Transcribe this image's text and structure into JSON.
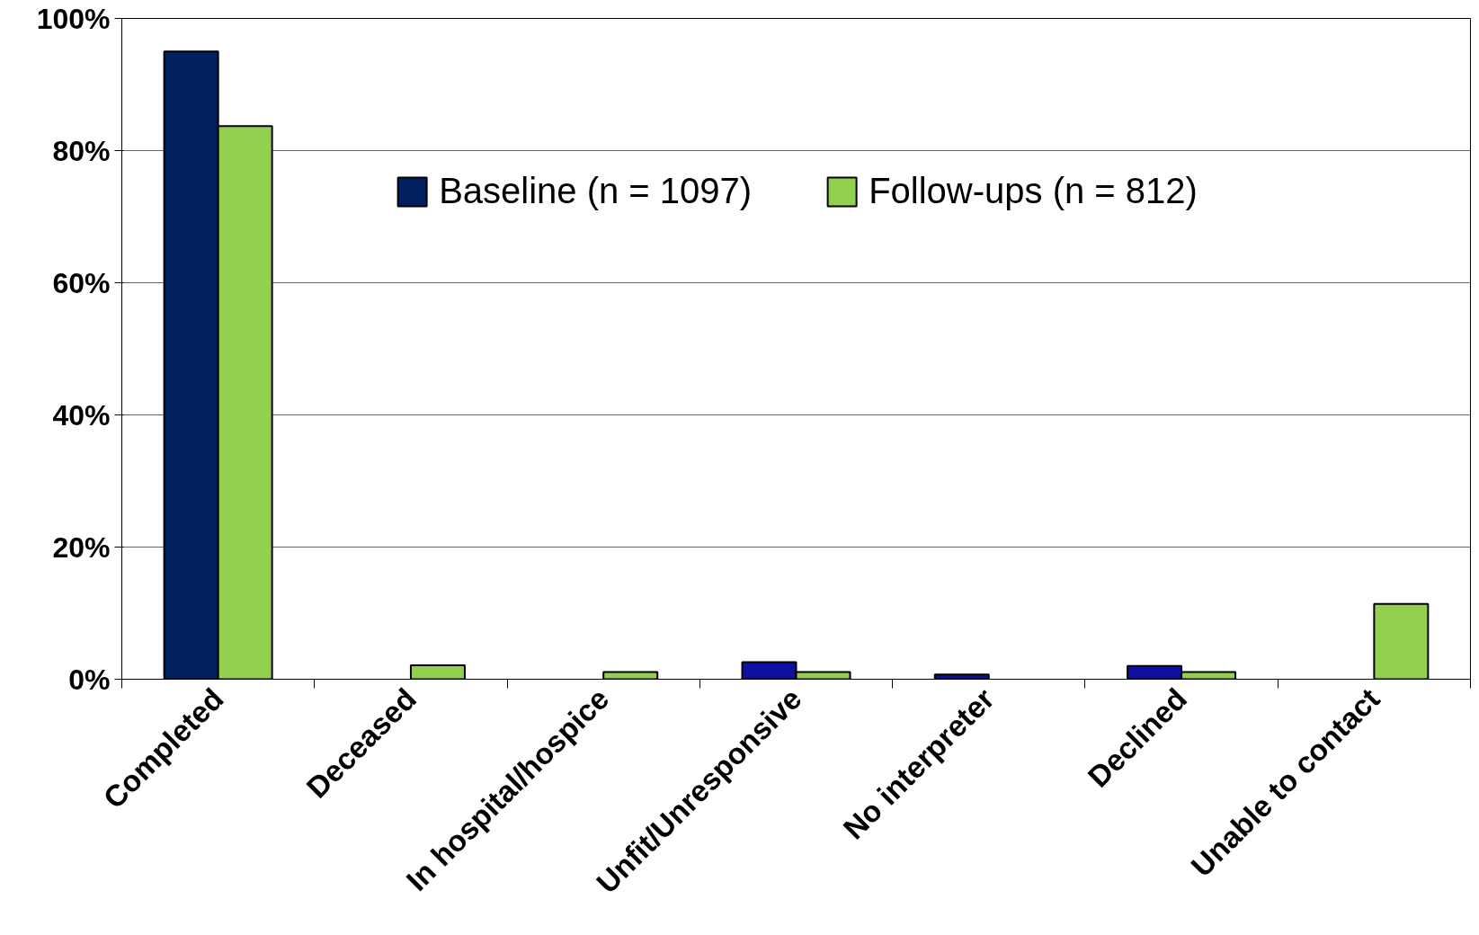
{
  "chart_data": {
    "type": "bar",
    "categories": [
      "Completed",
      "Deceased",
      "In hospital/hospice",
      "Unfit/Unresponsive",
      "No interpreter",
      "Declined",
      "Unable to contact"
    ],
    "series": [
      {
        "name": "Baseline (n = 1097)",
        "color": "#002060",
        "colors": [
          "#002060",
          "#002060",
          "#002060",
          "#1010a0",
          "#1010a0",
          "#1010a0",
          "#002060"
        ],
        "values": [
          95,
          null,
          null,
          2.6,
          0.7,
          2.0,
          null
        ]
      },
      {
        "name": "Follow-ups (n = 812)",
        "color": "#92d050",
        "values": [
          83.7,
          2.1,
          1.1,
          1.1,
          null,
          1.1,
          11.4
        ]
      }
    ],
    "ylim": [
      0,
      100
    ],
    "yticks": [
      {
        "value": 0,
        "label": "0%"
      },
      {
        "value": 20,
        "label": "20%"
      },
      {
        "value": 40,
        "label": "40%"
      },
      {
        "value": 60,
        "label": "60%"
      },
      {
        "value": 80,
        "label": "80%"
      },
      {
        "value": 100,
        "label": "100%"
      }
    ],
    "grid": "y",
    "legend": "top"
  }
}
